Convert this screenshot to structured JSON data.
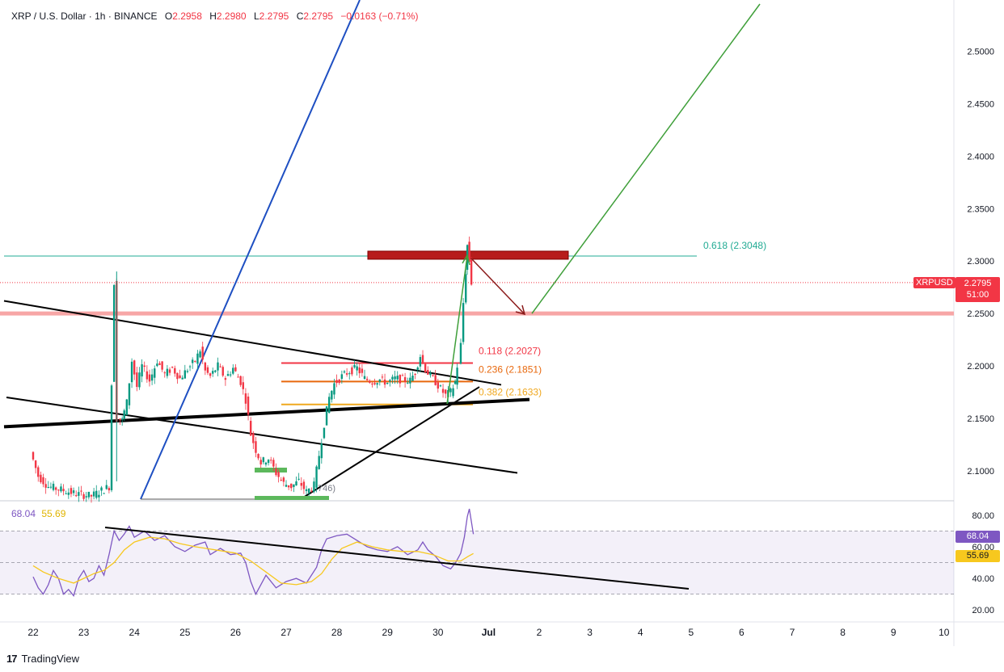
{
  "header": {
    "symbol": "XRP / U.S. Dollar · 1h · BINANCE",
    "open_label": "O",
    "open": "2.2958",
    "high_label": "H",
    "high": "2.2980",
    "low_label": "L",
    "low": "2.2795",
    "close_label": "C",
    "close": "2.2795",
    "change": "−0.0163 (−0.71%)"
  },
  "price_tag": {
    "symbol": "XRPUSD",
    "price": "2.2795",
    "countdown": "51:00"
  },
  "rsi": {
    "value": "68.04",
    "ma": "55.69"
  },
  "footer": {
    "brand": "TradingView"
  },
  "colors": {
    "up": "#089981",
    "down": "#f23645",
    "rsi": "#7e57c2",
    "rsi_ma": "#f7c81e",
    "fib_line": "#22ab94"
  },
  "chart_data": {
    "type": "candlestick",
    "x_ticks": [
      "22",
      "23",
      "24",
      "25",
      "26",
      "27",
      "28",
      "29",
      "30",
      "Jul",
      "2",
      "3",
      "4",
      "5",
      "6",
      "7",
      "8",
      "9",
      "10"
    ],
    "y_ticks": [
      "2.5000",
      "2.4500",
      "2.4000",
      "2.3500",
      "2.3000",
      "2.2500",
      "2.2000",
      "2.1500",
      "2.1000"
    ],
    "ylim": [
      2.073,
      2.545
    ],
    "rsi_ticks": [
      "80.00",
      "60.00",
      "40.00",
      "20.00"
    ],
    "rsi_ylim": [
      15,
      85
    ],
    "rsi_bands": [
      70,
      50,
      30
    ],
    "fib_levels": [
      {
        "label": "0.618 (2.3048)",
        "value": 2.3048
      },
      {
        "label": "0.118 (2.2027)",
        "value": 2.2027
      },
      {
        "label": "0.236 (2.1851)",
        "value": 2.1851
      },
      {
        "label": "0.382 (2.1633)",
        "value": 2.1633
      }
    ],
    "partial_label": "746)",
    "support_level": 2.25,
    "last_price": 2.2795,
    "price_series": [
      [
        22.0,
        2.118
      ],
      [
        22.15,
        2.095
      ],
      [
        22.35,
        2.085
      ],
      [
        22.6,
        2.082
      ],
      [
        22.9,
        2.078
      ],
      [
        23.2,
        2.076
      ],
      [
        23.55,
        2.085
      ],
      [
        23.65,
        2.28
      ],
      [
        23.72,
        2.15
      ],
      [
        23.8,
        2.148
      ],
      [
        23.9,
        2.165
      ],
      [
        24.0,
        2.205
      ],
      [
        24.1,
        2.18
      ],
      [
        24.2,
        2.2
      ],
      [
        24.35,
        2.186
      ],
      [
        24.5,
        2.205
      ],
      [
        24.65,
        2.192
      ],
      [
        24.8,
        2.198
      ],
      [
        24.95,
        2.188
      ],
      [
        25.1,
        2.197
      ],
      [
        25.25,
        2.205
      ],
      [
        25.35,
        2.215
      ],
      [
        25.45,
        2.195
      ],
      [
        25.55,
        2.19
      ],
      [
        25.7,
        2.2
      ],
      [
        25.85,
        2.188
      ],
      [
        26.0,
        2.198
      ],
      [
        26.15,
        2.185
      ],
      [
        26.25,
        2.168
      ],
      [
        26.35,
        2.135
      ],
      [
        26.45,
        2.12
      ],
      [
        26.55,
        2.108
      ],
      [
        26.7,
        2.112
      ],
      [
        26.85,
        2.098
      ],
      [
        27.0,
        2.088
      ],
      [
        27.15,
        2.085
      ],
      [
        27.3,
        2.09
      ],
      [
        27.45,
        2.08
      ],
      [
        27.6,
        2.086
      ],
      [
        27.7,
        2.115
      ],
      [
        27.8,
        2.145
      ],
      [
        27.9,
        2.17
      ],
      [
        28.0,
        2.183
      ],
      [
        28.15,
        2.19
      ],
      [
        28.3,
        2.195
      ],
      [
        28.45,
        2.198
      ],
      [
        28.6,
        2.188
      ],
      [
        28.75,
        2.185
      ],
      [
        28.9,
        2.187
      ],
      [
        29.05,
        2.184
      ],
      [
        29.2,
        2.188
      ],
      [
        29.35,
        2.187
      ],
      [
        29.5,
        2.186
      ],
      [
        29.6,
        2.195
      ],
      [
        29.7,
        2.21
      ],
      [
        29.8,
        2.197
      ],
      [
        29.9,
        2.19
      ],
      [
        30.0,
        2.185
      ],
      [
        30.1,
        2.178
      ],
      [
        30.2,
        2.172
      ],
      [
        30.3,
        2.175
      ],
      [
        30.38,
        2.185
      ],
      [
        30.45,
        2.2
      ],
      [
        30.5,
        2.22
      ],
      [
        30.55,
        2.26
      ],
      [
        30.58,
        2.29
      ],
      [
        30.62,
        2.315
      ],
      [
        30.66,
        2.3
      ],
      [
        30.7,
        2.2795
      ]
    ],
    "rsi_series": [
      [
        22.0,
        41
      ],
      [
        22.1,
        34
      ],
      [
        22.2,
        30
      ],
      [
        22.3,
        36
      ],
      [
        22.4,
        45
      ],
      [
        22.5,
        40
      ],
      [
        22.6,
        30
      ],
      [
        22.7,
        33
      ],
      [
        22.8,
        29
      ],
      [
        22.9,
        40
      ],
      [
        23.0,
        45
      ],
      [
        23.1,
        38
      ],
      [
        23.2,
        40
      ],
      [
        23.3,
        48
      ],
      [
        23.4,
        42
      ],
      [
        23.5,
        55
      ],
      [
        23.6,
        70
      ],
      [
        23.7,
        64
      ],
      [
        23.8,
        68
      ],
      [
        23.9,
        73
      ],
      [
        24.0,
        66
      ],
      [
        24.2,
        70
      ],
      [
        24.4,
        64
      ],
      [
        24.6,
        67
      ],
      [
        24.8,
        60
      ],
      [
        25.0,
        57
      ],
      [
        25.2,
        61
      ],
      [
        25.4,
        63
      ],
      [
        25.5,
        55
      ],
      [
        25.7,
        59
      ],
      [
        25.9,
        55
      ],
      [
        26.1,
        56
      ],
      [
        26.2,
        50
      ],
      [
        26.3,
        38
      ],
      [
        26.4,
        30
      ],
      [
        26.5,
        36
      ],
      [
        26.6,
        42
      ],
      [
        26.8,
        34
      ],
      [
        27.0,
        38
      ],
      [
        27.2,
        40
      ],
      [
        27.4,
        37
      ],
      [
        27.6,
        47
      ],
      [
        27.7,
        58
      ],
      [
        27.8,
        65
      ],
      [
        28.0,
        67
      ],
      [
        28.2,
        68
      ],
      [
        28.4,
        64
      ],
      [
        28.6,
        60
      ],
      [
        28.8,
        58
      ],
      [
        29.0,
        57
      ],
      [
        29.2,
        60
      ],
      [
        29.4,
        55
      ],
      [
        29.6,
        58
      ],
      [
        29.7,
        63
      ],
      [
        29.8,
        58
      ],
      [
        29.95,
        54
      ],
      [
        30.1,
        48
      ],
      [
        30.25,
        46
      ],
      [
        30.35,
        50
      ],
      [
        30.45,
        56
      ],
      [
        30.52,
        66
      ],
      [
        30.58,
        79
      ],
      [
        30.62,
        84
      ],
      [
        30.7,
        68
      ]
    ],
    "rsi_ma_series": [
      [
        22.0,
        48
      ],
      [
        22.2,
        44
      ],
      [
        22.5,
        40
      ],
      [
        22.8,
        37
      ],
      [
        23.0,
        40
      ],
      [
        23.2,
        43
      ],
      [
        23.4,
        45
      ],
      [
        23.6,
        50
      ],
      [
        23.8,
        58
      ],
      [
        24.0,
        63
      ],
      [
        24.3,
        66
      ],
      [
        24.6,
        65
      ],
      [
        24.9,
        62
      ],
      [
        25.2,
        60
      ],
      [
        25.6,
        58
      ],
      [
        26.0,
        56
      ],
      [
        26.3,
        51
      ],
      [
        26.6,
        44
      ],
      [
        26.9,
        37
      ],
      [
        27.2,
        36
      ],
      [
        27.5,
        38
      ],
      [
        27.7,
        43
      ],
      [
        27.9,
        52
      ],
      [
        28.1,
        59
      ],
      [
        28.4,
        63
      ],
      [
        28.7,
        60
      ],
      [
        29.0,
        58
      ],
      [
        29.3,
        57
      ],
      [
        29.6,
        57
      ],
      [
        29.9,
        55
      ],
      [
        30.2,
        51
      ],
      [
        30.45,
        51
      ],
      [
        30.6,
        54
      ],
      [
        30.7,
        55.7
      ]
    ]
  }
}
